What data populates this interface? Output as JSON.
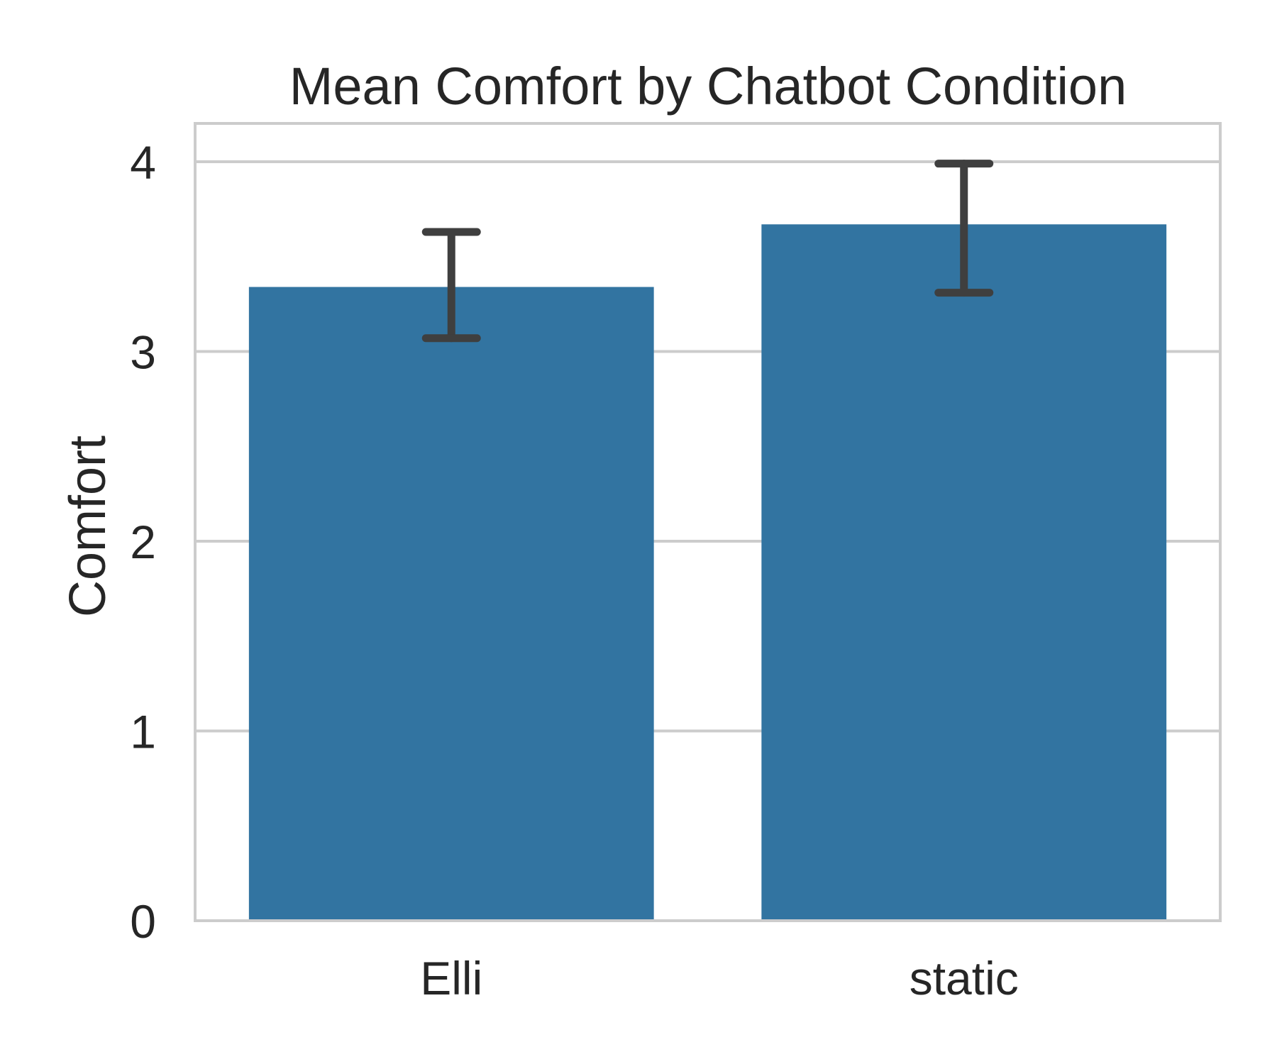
{
  "chart_data": {
    "type": "bar",
    "title": "Mean Comfort by Chatbot Condition",
    "xlabel": "",
    "ylabel": "Comfort",
    "categories": [
      "Elli",
      "static"
    ],
    "values": [
      3.34,
      3.67
    ],
    "error_bars": [
      {
        "low": 3.07,
        "high": 3.63
      },
      {
        "low": 3.31,
        "high": 3.99
      }
    ],
    "ylim": [
      0,
      4.2
    ],
    "yticks": [
      "0",
      "1",
      "2",
      "3",
      "4"
    ],
    "grid": "horizontal",
    "bar_color": "#3274a1",
    "error_color": "#3f3f3f",
    "grid_color": "#cccccc"
  }
}
